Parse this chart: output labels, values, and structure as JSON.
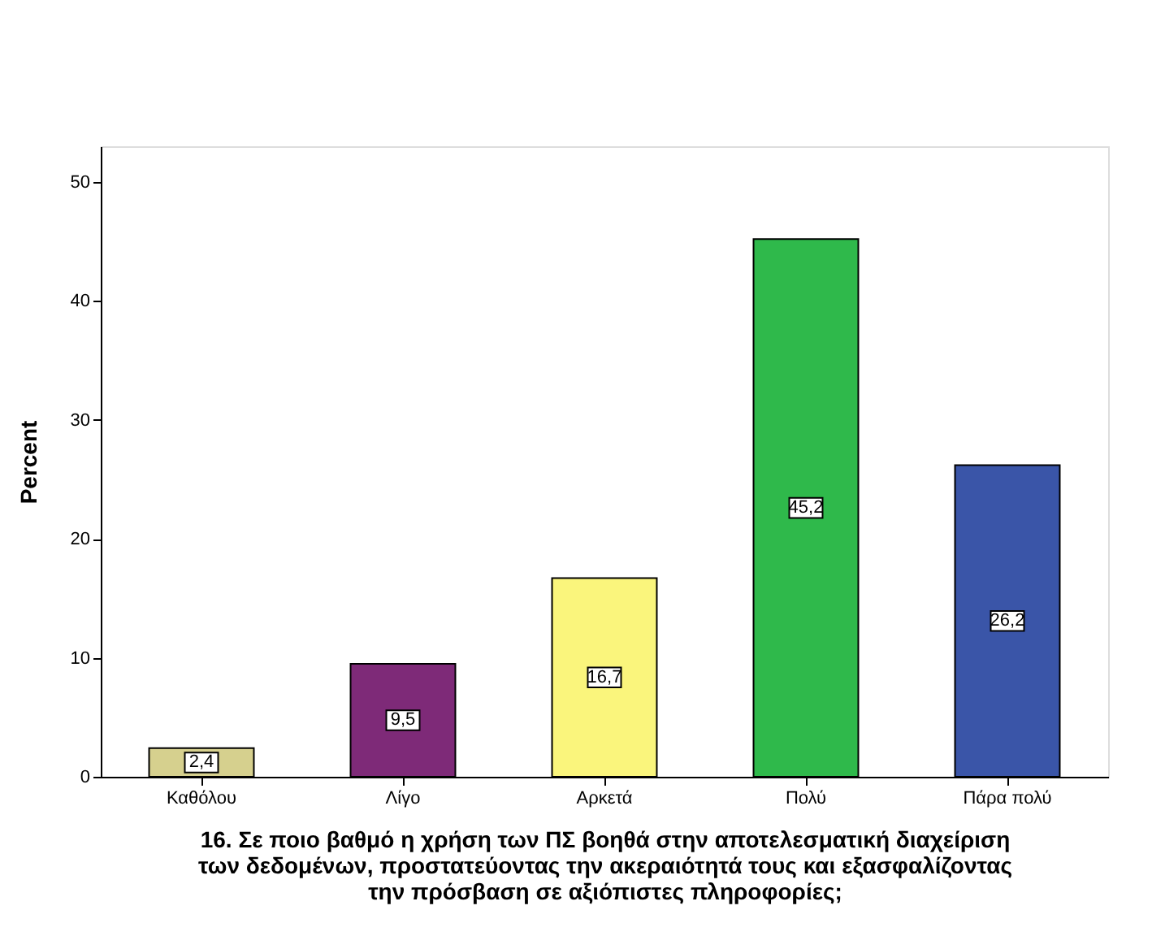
{
  "chart_data": {
    "type": "bar",
    "categories": [
      "Καθόλου",
      "Λίγο",
      "Αρκετά",
      "Πολύ",
      "Πάρα πολύ"
    ],
    "values": [
      2.4,
      9.5,
      16.7,
      45.2,
      26.2
    ],
    "colors": [
      "#d6d08e",
      "#7e2a78",
      "#faf57c",
      "#2fb94b",
      "#3a55a8"
    ],
    "value_labels": [
      "2,4",
      "9,5",
      "16,7",
      "45,2",
      "26,2"
    ],
    "ylabel": "Percent",
    "xlabel": "16.  Σε ποιο βαθμό η χρήση των ΠΣ βοηθά στην αποτελεσματική διαχείριση\nτων δεδομένων, προστατεύοντας την ακεραιότητά τους και εξασφαλίζοντας\nτην πρόσβαση σε αξιόπιστες πληροφορίες;",
    "ylim": [
      0,
      53
    ],
    "yticks": [
      0,
      10,
      20,
      30,
      40,
      50
    ],
    "grid": false,
    "legend": false
  }
}
